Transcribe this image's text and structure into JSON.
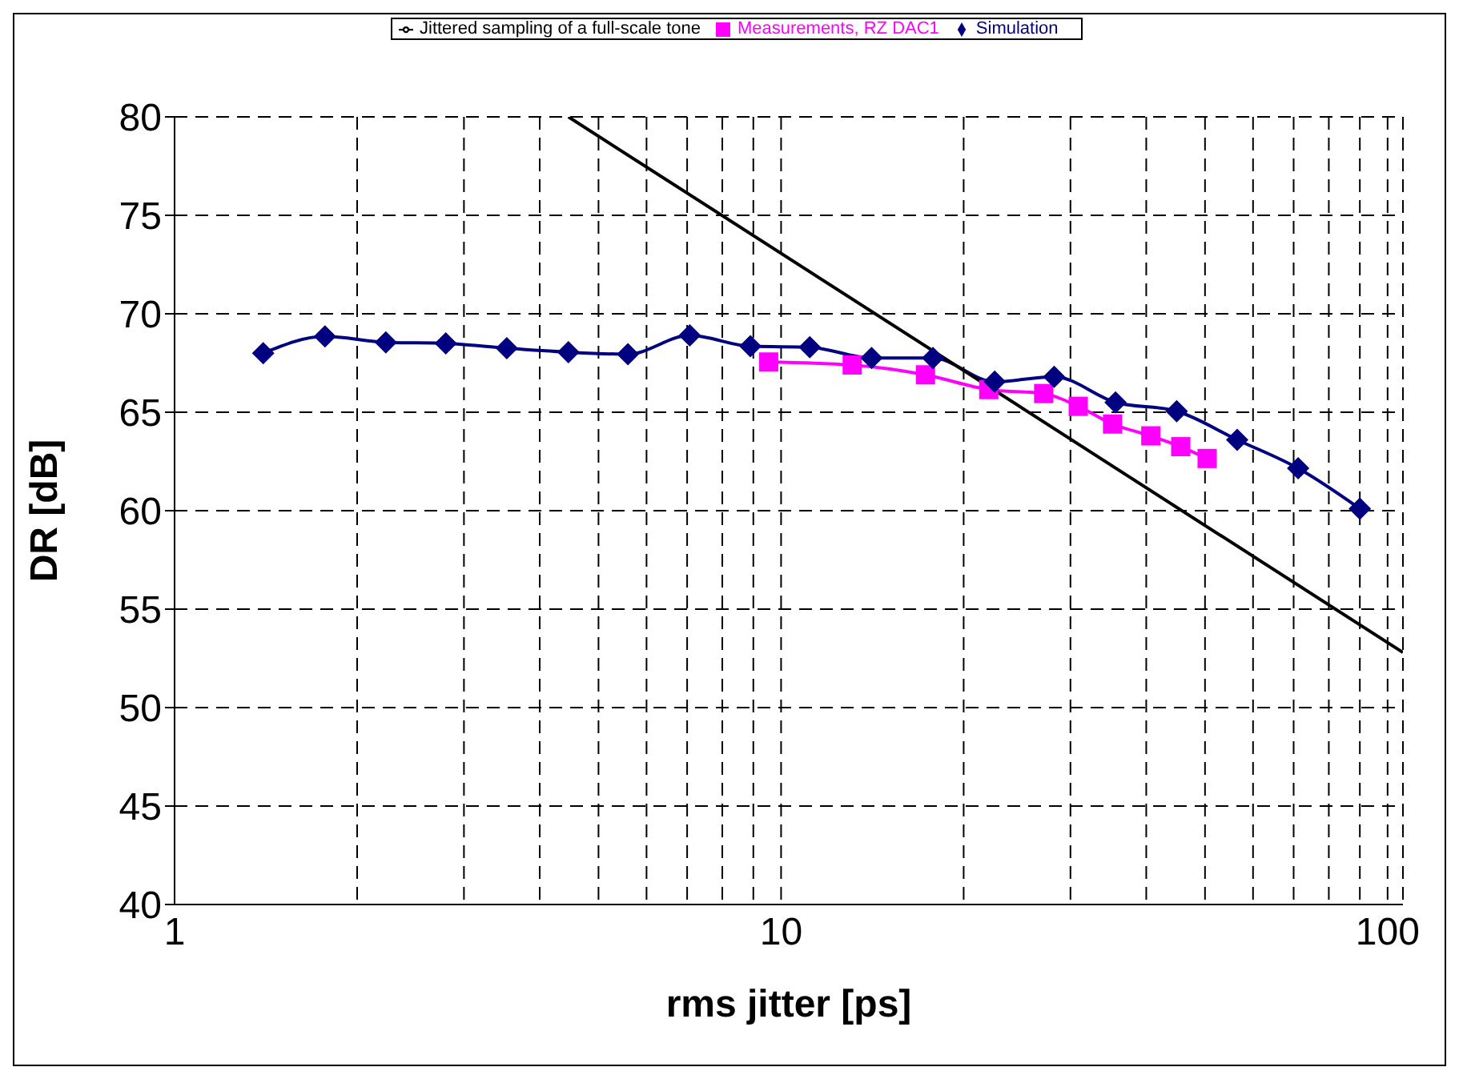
{
  "chart_data": {
    "type": "line",
    "xlabel": "rms jitter [ps]",
    "ylabel": "DR [dB]",
    "log": "x",
    "xlim": [
      1,
      106
    ],
    "ylim": [
      40,
      80
    ],
    "xticks": [
      1,
      {
        "value": 2,
        "label": null
      },
      {
        "value": 3,
        "label": null
      },
      {
        "value": 4,
        "label": null
      },
      {
        "value": 5,
        "label": null
      },
      {
        "value": 6,
        "label": null
      },
      {
        "value": 7,
        "label": null
      },
      {
        "value": 8,
        "label": null
      },
      {
        "value": 9,
        "label": null
      },
      10,
      {
        "value": 20,
        "label": null
      },
      {
        "value": 30,
        "label": null
      },
      {
        "value": 40,
        "label": null
      },
      {
        "value": 50,
        "label": null
      },
      {
        "value": 60,
        "label": null
      },
      {
        "value": 70,
        "label": null
      },
      {
        "value": 80,
        "label": null
      },
      {
        "value": 90,
        "label": null
      },
      100
    ],
    "yticks": [
      40,
      45,
      50,
      55,
      60,
      65,
      70,
      75,
      80
    ],
    "grid": true,
    "legend": "top",
    "line_style": "solid",
    "series": [
      {
        "name": "Measurements, RZ DAC1",
        "color": "#ff00ff",
        "marker": "square",
        "x": [
          9.54,
          13.1,
          17.3,
          22.0,
          27.1,
          30.9,
          35.2,
          40.7,
          45.6,
          50.4
        ],
        "values": [
          67.55,
          67.4,
          66.9,
          66.15,
          65.95,
          65.3,
          64.4,
          63.8,
          63.25,
          62.65
        ]
      },
      {
        "name": "Simulation",
        "color": "#000080",
        "marker": "diamond",
        "x": [
          1.4,
          1.77,
          2.23,
          2.8,
          3.53,
          4.46,
          5.59,
          7.07,
          8.9,
          11.15,
          14.1,
          17.8,
          22.5,
          28.2,
          35.6,
          44.9,
          56.5,
          71.2,
          90.0
        ],
        "values": [
          68.0,
          68.85,
          68.55,
          68.5,
          68.25,
          68.05,
          67.95,
          68.9,
          68.35,
          68.3,
          67.75,
          67.75,
          66.55,
          66.8,
          65.5,
          65.05,
          63.6,
          62.15,
          60.1
        ]
      },
      {
        "name": "Jittered sampling of a full-scale tone",
        "color": "#000000",
        "marker": "none",
        "x": [
          4.46,
          106
        ],
        "values": [
          80,
          52.8
        ]
      }
    ]
  }
}
